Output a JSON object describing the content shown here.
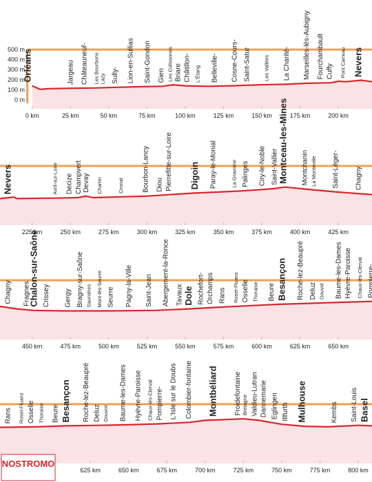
{
  "chart_data": [
    {
      "type": "line",
      "color": "#d7262c",
      "x": [
        0,
        5,
        10,
        25,
        40,
        55,
        70,
        85,
        92,
        100,
        115,
        130,
        140,
        150,
        165,
        180,
        195,
        200,
        205,
        215,
        222
      ],
      "values": [
        140,
        105,
        110,
        115,
        118,
        125,
        130,
        135,
        150,
        140,
        135,
        140,
        145,
        150,
        155,
        165,
        170,
        185,
        180,
        195,
        180
      ],
      "xlim": [
        -21,
        222
      ],
      "ylim": [
        0,
        500
      ],
      "xticks": [
        {
          "value": 0,
          "label": "0 km"
        },
        {
          "value": 25,
          "label": "25 km"
        },
        {
          "value": 50,
          "label": "50 km"
        },
        {
          "value": 75,
          "label": "75 km"
        },
        {
          "value": 100,
          "label": "100 km"
        },
        {
          "value": 125,
          "label": "125 km"
        },
        {
          "value": 150,
          "label": "150 km"
        },
        {
          "value": 175,
          "label": "175 km"
        },
        {
          "value": 200,
          "label": "200 km"
        }
      ],
      "yticks": [
        {
          "value": 0,
          "label": "0 m"
        },
        {
          "value": 100,
          "label": "100 m"
        },
        {
          "value": 200,
          "label": "200 m"
        },
        {
          "value": 300,
          "label": "300 m"
        },
        {
          "value": 400,
          "label": "400 m"
        },
        {
          "value": 500,
          "label": "500 m"
        }
      ],
      "places": [
        {
          "name": "Orléans",
          "km": -3,
          "style": "bold"
        },
        {
          "name": "Jargeau",
          "km": 25,
          "style": "normal"
        },
        {
          "name": "Châteauneuf-",
          "km": 34,
          "style": "normal"
        },
        {
          "name": "Les Bourbons",
          "km": 42,
          "style": "small"
        },
        {
          "name": "Lazy",
          "km": 46,
          "style": "small"
        },
        {
          "name": "Sully-",
          "km": 54,
          "style": "normal"
        },
        {
          "name": "Lion-en-Sullias",
          "km": 64,
          "style": "normal"
        },
        {
          "name": "Saint-Gondon",
          "km": 75,
          "style": "normal"
        },
        {
          "name": "Gien",
          "km": 84,
          "style": "normal"
        },
        {
          "name": "Les Colissones",
          "km": 90,
          "style": "small"
        },
        {
          "name": "Briare",
          "km": 95,
          "style": "normal"
        },
        {
          "name": "Châtillon-",
          "km": 101,
          "style": "normal"
        },
        {
          "name": "L'Étang",
          "km": 108,
          "style": "small"
        },
        {
          "name": "Belleville-",
          "km": 119,
          "style": "normal"
        },
        {
          "name": "Cosne-Cours-",
          "km": 132,
          "style": "normal"
        },
        {
          "name": "Saint-Satur",
          "km": 140,
          "style": "normal"
        },
        {
          "name": "Les Vallées",
          "km": 153,
          "style": "small"
        },
        {
          "name": "La Charité-",
          "km": 166,
          "style": "normal"
        },
        {
          "name": "Marseilles-lès-Aubigny",
          "km": 179,
          "style": "normal"
        },
        {
          "name": "Fourchambault",
          "km": 188,
          "style": "normal"
        },
        {
          "name": "Cuffy",
          "km": 194,
          "style": "normal"
        },
        {
          "name": "Pont Carreau",
          "km": 203,
          "style": "small"
        },
        {
          "name": "Nevers",
          "km": 213,
          "style": "bold"
        }
      ]
    },
    {
      "type": "line",
      "color": "#d7262c",
      "x": [
        204,
        213,
        215,
        240,
        255,
        260,
        265,
        300,
        320,
        331,
        345,
        360,
        375,
        383,
        390,
        400,
        410,
        425,
        447
      ],
      "values": [
        175,
        190,
        175,
        180,
        185,
        200,
        185,
        200,
        220,
        230,
        240,
        250,
        265,
        275,
        290,
        275,
        260,
        240,
        215
      ],
      "xlim": [
        204,
        447
      ],
      "ylim": [
        0,
        500
      ],
      "xticks": [
        {
          "value": 225,
          "label": "225 km"
        },
        {
          "value": 250,
          "label": "250 km"
        },
        {
          "value": 275,
          "label": "275 km"
        },
        {
          "value": 300,
          "label": "300 km"
        },
        {
          "value": 325,
          "label": "325 km"
        },
        {
          "value": 350,
          "label": "350 km"
        },
        {
          "value": 375,
          "label": "375 km"
        },
        {
          "value": 400,
          "label": "400 km"
        },
        {
          "value": 425,
          "label": "425 km"
        }
      ],
      "places": [
        {
          "name": "Nevers",
          "km": 209,
          "style": "bold"
        },
        {
          "name": "Avril-sur-Loire",
          "km": 240,
          "style": "small"
        },
        {
          "name": "Decize",
          "km": 249,
          "style": "normal"
        },
        {
          "name": "Champvert",
          "km": 255,
          "style": "normal"
        },
        {
          "name": "Devay",
          "km": 260,
          "style": "normal"
        },
        {
          "name": "Charrin",
          "km": 269,
          "style": "small"
        },
        {
          "name": "Cronat",
          "km": 283,
          "style": "small"
        },
        {
          "name": "Bourbon-Lancy",
          "km": 299,
          "style": "normal"
        },
        {
          "name": "Diou",
          "km": 308,
          "style": "normal"
        },
        {
          "name": "Pierrefitte-sur-Loire",
          "km": 314,
          "style": "normal"
        },
        {
          "name": "Digoin",
          "km": 331,
          "style": "bold"
        },
        {
          "name": "Paray-le-Monial",
          "km": 343,
          "style": "normal"
        },
        {
          "name": "La Gravoine",
          "km": 357,
          "style": "small"
        },
        {
          "name": "Palinges",
          "km": 364,
          "style": "normal"
        },
        {
          "name": "Ciry-le-Noble",
          "km": 375,
          "style": "normal"
        },
        {
          "name": "Saint-Vallier",
          "km": 383,
          "style": "normal"
        },
        {
          "name": "Montceau-les-Mines",
          "km": 389,
          "style": "bold"
        },
        {
          "name": "Montchanin",
          "km": 403,
          "style": "normal"
        },
        {
          "name": "La Monteville",
          "km": 409,
          "style": "small"
        },
        {
          "name": "Saint-Léger-",
          "km": 423,
          "style": "normal"
        },
        {
          "name": "Chagny",
          "km": 438,
          "style": "normal"
        }
      ]
    },
    {
      "type": "line",
      "color": "#d7262c",
      "x": [
        429,
        440,
        451,
        470,
        500,
        530,
        552,
        570,
        590,
        610,
        630,
        650,
        672
      ],
      "values": [
        240,
        215,
        200,
        195,
        195,
        200,
        215,
        230,
        245,
        260,
        270,
        280,
        290
      ],
      "xlim": [
        429,
        672
      ],
      "ylim": [
        0,
        500
      ],
      "xticks": [
        {
          "value": 450,
          "label": "450 km"
        },
        {
          "value": 475,
          "label": "475 km"
        },
        {
          "value": 500,
          "label": "500 km"
        },
        {
          "value": 525,
          "label": "525 km"
        },
        {
          "value": 550,
          "label": "550 km"
        },
        {
          "value": 575,
          "label": "575 km"
        },
        {
          "value": 600,
          "label": "600 km"
        },
        {
          "value": 625,
          "label": "625 km"
        },
        {
          "value": 650,
          "label": "650 km"
        }
      ],
      "places": [
        {
          "name": "Chagny",
          "km": 434,
          "style": "normal"
        },
        {
          "name": "Fragnes",
          "km": 446,
          "style": "normal"
        },
        {
          "name": "Chalon-sur-Saône",
          "km": 451,
          "style": "bold"
        },
        {
          "name": "Crissey",
          "km": 459,
          "style": "normal"
        },
        {
          "name": "Gergy",
          "km": 473,
          "style": "normal"
        },
        {
          "name": "Bragny-sur-Saône",
          "km": 481,
          "style": "normal"
        },
        {
          "name": "Saunières",
          "km": 487,
          "style": "small"
        },
        {
          "name": "Mont-lès-Seurre",
          "km": 494,
          "style": "small"
        },
        {
          "name": "Seurre",
          "km": 501,
          "style": "normal"
        },
        {
          "name": "Pagny-la-Ville",
          "km": 513,
          "style": "normal"
        },
        {
          "name": "Saint-Jean",
          "km": 526,
          "style": "normal"
        },
        {
          "name": "Abergement-la-Ronce",
          "km": 537,
          "style": "normal"
        },
        {
          "name": "Tavaux",
          "km": 546,
          "style": "normal"
        },
        {
          "name": "Dole",
          "km": 552,
          "style": "bold"
        },
        {
          "name": "Rochefort-",
          "km": 560,
          "style": "normal"
        },
        {
          "name": "Orchamps",
          "km": 566,
          "style": "normal"
        },
        {
          "name": "Rans",
          "km": 574,
          "style": "normal"
        },
        {
          "name": "Roset-Fluans",
          "km": 583,
          "style": "small"
        },
        {
          "name": "Osselle",
          "km": 589,
          "style": "normal"
        },
        {
          "name": "Thoraise",
          "km": 596,
          "style": "small"
        },
        {
          "name": "Beure",
          "km": 606,
          "style": "normal"
        },
        {
          "name": "Besançon",
          "km": 613,
          "style": "bold"
        },
        {
          "name": "Roche-lez-Beaupré",
          "km": 625,
          "style": "normal"
        },
        {
          "name": "Deluz",
          "km": 633,
          "style": "normal"
        },
        {
          "name": "Douvot",
          "km": 639,
          "style": "small"
        },
        {
          "name": "Baume-les-Dames",
          "km": 650,
          "style": "normal"
        },
        {
          "name": "Hyèvre-Paroisse",
          "km": 656,
          "style": "normal"
        },
        {
          "name": "Chaux-lès-Clerval",
          "km": 664,
          "style": "small"
        },
        {
          "name": "Pompierre-",
          "km": 671,
          "style": "normal"
        }
      ]
    },
    {
      "type": "line",
      "color": "#d7262c",
      "x": [
        566,
        590,
        610,
        630,
        650,
        670,
        690,
        700,
        710,
        725,
        735,
        750,
        765,
        780,
        800,
        809
      ],
      "values": [
        270,
        275,
        285,
        290,
        295,
        305,
        320,
        340,
        345,
        355,
        340,
        300,
        280,
        275,
        290,
        285
      ],
      "xlim": [
        566,
        809
      ],
      "ylim": [
        0,
        500
      ],
      "xticks": [
        {
          "value": 625,
          "label": "625 km"
        },
        {
          "value": 650,
          "label": "650 km"
        },
        {
          "value": 675,
          "label": "675 km"
        },
        {
          "value": 700,
          "label": "700 km"
        },
        {
          "value": 725,
          "label": "725 km"
        },
        {
          "value": 750,
          "label": "750 km"
        },
        {
          "value": 775,
          "label": "775 km"
        },
        {
          "value": 800,
          "label": "800 km"
        }
      ],
      "places": [
        {
          "name": "Rans",
          "km": 571,
          "style": "normal"
        },
        {
          "name": "Roset-Fluans",
          "km": 580,
          "style": "small"
        },
        {
          "name": "Osselle",
          "km": 586,
          "style": "normal"
        },
        {
          "name": "Thoraise",
          "km": 593,
          "style": "small"
        },
        {
          "name": "Beure",
          "km": 602,
          "style": "normal"
        },
        {
          "name": "Besançon",
          "km": 609,
          "style": "bold"
        },
        {
          "name": "Roche-lez-Beaupré",
          "km": 622,
          "style": "normal"
        },
        {
          "name": "Deluz",
          "km": 629,
          "style": "normal"
        },
        {
          "name": "Douvot",
          "km": 635,
          "style": "small"
        },
        {
          "name": "Baume-les-Dames",
          "km": 646,
          "style": "normal"
        },
        {
          "name": "Hyèvre-Paroisse",
          "km": 656,
          "style": "normal"
        },
        {
          "name": "Chaux-lès-Clerval",
          "km": 664,
          "style": "small"
        },
        {
          "name": "Pompierre-",
          "km": 670,
          "style": "normal"
        },
        {
          "name": "L'Isle sur le Doubs",
          "km": 679,
          "style": "normal"
        },
        {
          "name": "Colombier-fontaine",
          "km": 689,
          "style": "normal"
        },
        {
          "name": "Montbéliard",
          "km": 705,
          "style": "bold"
        },
        {
          "name": "Froidefontaine",
          "km": 721,
          "style": "normal"
        },
        {
          "name": "Bretagne",
          "km": 726,
          "style": "small"
        },
        {
          "name": "Valdieu-Lutran",
          "km": 732,
          "style": "normal"
        },
        {
          "name": "Dannemarie",
          "km": 738,
          "style": "normal"
        },
        {
          "name": "Eglingen",
          "km": 745,
          "style": "normal"
        },
        {
          "name": "Illfurth",
          "km": 752,
          "style": "normal"
        },
        {
          "name": "Mulhouse",
          "km": 763,
          "style": "bold"
        },
        {
          "name": "Kembs",
          "km": 784,
          "style": "normal"
        },
        {
          "name": "Saint-Louis",
          "km": 797,
          "style": "normal"
        },
        {
          "name": "Basel",
          "km": 804,
          "style": "bold"
        }
      ]
    }
  ],
  "logo": "NOSTROMO"
}
